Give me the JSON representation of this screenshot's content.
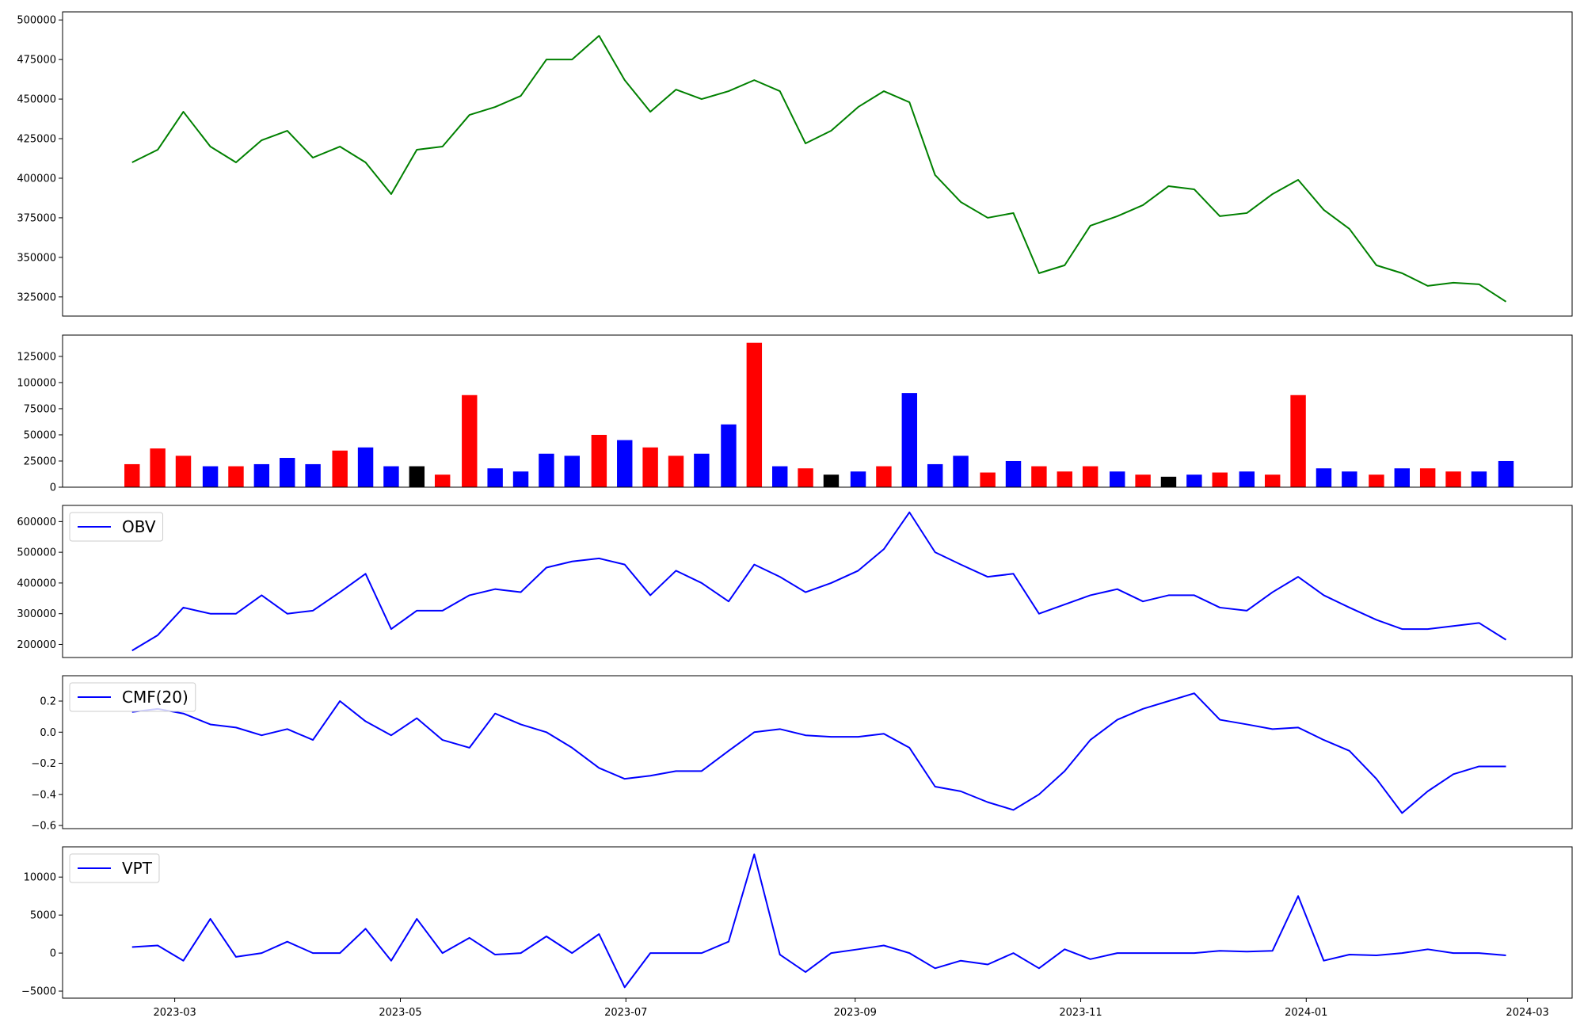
{
  "chart_data": [
    {
      "type": "line",
      "xlim": [
        2023.0785,
        2024.197
      ],
      "ylim": [
        312900,
        505100
      ],
      "yticks": [
        325000,
        350000,
        375000,
        400000,
        425000,
        450000,
        475000,
        500000
      ],
      "x": [
        2023.13,
        2023.149,
        2023.168,
        2023.188,
        2023.207,
        2023.226,
        2023.245,
        2023.264,
        2023.284,
        2023.303,
        2023.322,
        2023.341,
        2023.36,
        2023.38,
        2023.399,
        2023.418,
        2023.437,
        2023.456,
        2023.476,
        2023.495,
        2023.514,
        2023.533,
        2023.552,
        2023.572,
        2023.591,
        2023.61,
        2023.629,
        2023.648,
        2023.668,
        2023.687,
        2023.706,
        2023.725,
        2023.744,
        2023.764,
        2023.783,
        2023.802,
        2023.821,
        2023.84,
        2023.86,
        2023.879,
        2023.898,
        2023.917,
        2023.936,
        2023.956,
        2023.975,
        2023.994,
        2024.013,
        2024.032,
        2024.052,
        2024.071,
        2024.09,
        2024.109,
        2024.128,
        2024.148
      ],
      "series": [
        {
          "color": "green",
          "values": [
            410000,
            418000,
            442000,
            420000,
            410000,
            424000,
            430000,
            413000,
            420000,
            410000,
            390000,
            418000,
            420000,
            440000,
            445000,
            452000,
            475000,
            475000,
            490000,
            462000,
            442000,
            456000,
            450000,
            455000,
            462000,
            455000,
            422000,
            430000,
            445000,
            455000,
            448000,
            402000,
            385000,
            375000,
            378000,
            340000,
            345000,
            370000,
            376000,
            383000,
            395000,
            393000,
            376000,
            378000,
            390000,
            399000,
            380000,
            368000,
            345000,
            340000,
            332000,
            334000,
            333000,
            322000
          ]
        }
      ]
    },
    {
      "type": "bar",
      "xlim": [
        2023.0785,
        2024.197
      ],
      "ylim": [
        0,
        145350
      ],
      "yticks": [
        0,
        25000,
        50000,
        75000,
        100000,
        125000
      ],
      "x": [
        2023.13,
        2023.149,
        2023.168,
        2023.188,
        2023.207,
        2023.226,
        2023.245,
        2023.264,
        2023.284,
        2023.303,
        2023.322,
        2023.341,
        2023.36,
        2023.38,
        2023.399,
        2023.418,
        2023.437,
        2023.456,
        2023.476,
        2023.495,
        2023.514,
        2023.533,
        2023.552,
        2023.572,
        2023.591,
        2023.61,
        2023.629,
        2023.648,
        2023.668,
        2023.687,
        2023.706,
        2023.725,
        2023.744,
        2023.764,
        2023.783,
        2023.802,
        2023.821,
        2023.84,
        2023.86,
        2023.879,
        2023.898,
        2023.917,
        2023.936,
        2023.956,
        2023.975,
        2023.994,
        2024.013,
        2024.032,
        2024.052,
        2024.071,
        2024.09,
        2024.109,
        2024.128,
        2024.148
      ],
      "values": [
        22000,
        37000,
        30000,
        20000,
        20000,
        22000,
        28000,
        22000,
        35000,
        38000,
        20000,
        20000,
        12000,
        88000,
        18000,
        15000,
        32000,
        30000,
        50000,
        45000,
        38000,
        30000,
        32000,
        60000,
        138000,
        20000,
        18000,
        12000,
        15000,
        20000,
        90000,
        22000,
        30000,
        14000,
        25000,
        20000,
        15000,
        20000,
        15000,
        12000,
        10000,
        12000,
        14000,
        15000,
        12000,
        88000,
        18000,
        15000,
        12000,
        18000,
        18000,
        15000,
        15000,
        25000
      ],
      "colors": [
        "red",
        "red",
        "red",
        "blue",
        "red",
        "blue",
        "blue",
        "blue",
        "red",
        "blue",
        "blue",
        "black",
        "red",
        "red",
        "blue",
        "blue",
        "blue",
        "blue",
        "red",
        "blue",
        "red",
        "red",
        "blue",
        "blue",
        "red",
        "blue",
        "red",
        "black",
        "blue",
        "red",
        "blue",
        "blue",
        "blue",
        "red",
        "blue",
        "red",
        "red",
        "red",
        "blue",
        "red",
        "black",
        "blue",
        "red",
        "blue",
        "red",
        "red",
        "blue",
        "blue",
        "red",
        "blue",
        "red",
        "red",
        "blue",
        "blue"
      ]
    },
    {
      "type": "line",
      "xlim": [
        2023.0785,
        2024.197
      ],
      "ylim": [
        157400,
        652500
      ],
      "yticks": [
        200000,
        300000,
        400000,
        500000,
        600000
      ],
      "legend": "upper left",
      "x": [
        2023.13,
        2023.149,
        2023.168,
        2023.188,
        2023.207,
        2023.226,
        2023.245,
        2023.264,
        2023.284,
        2023.303,
        2023.322,
        2023.341,
        2023.36,
        2023.38,
        2023.399,
        2023.418,
        2023.437,
        2023.456,
        2023.476,
        2023.495,
        2023.514,
        2023.533,
        2023.552,
        2023.572,
        2023.591,
        2023.61,
        2023.629,
        2023.648,
        2023.668,
        2023.687,
        2023.706,
        2023.725,
        2023.744,
        2023.764,
        2023.783,
        2023.802,
        2023.821,
        2023.84,
        2023.86,
        2023.879,
        2023.898,
        2023.917,
        2023.936,
        2023.956,
        2023.975,
        2023.994,
        2024.013,
        2024.032,
        2024.052,
        2024.071,
        2024.09,
        2024.109,
        2024.128,
        2024.148
      ],
      "series": [
        {
          "name": "OBV",
          "color": "blue",
          "values": [
            180000,
            230000,
            320000,
            300000,
            300000,
            360000,
            300000,
            310000,
            370000,
            430000,
            250000,
            310000,
            310000,
            360000,
            380000,
            370000,
            450000,
            470000,
            480000,
            460000,
            360000,
            440000,
            400000,
            340000,
            460000,
            420000,
            370000,
            400000,
            440000,
            510000,
            630000,
            500000,
            460000,
            420000,
            430000,
            300000,
            330000,
            360000,
            380000,
            340000,
            360000,
            360000,
            320000,
            310000,
            370000,
            420000,
            360000,
            320000,
            280000,
            250000,
            250000,
            260000,
            270000,
            215000
          ]
        }
      ]
    },
    {
      "type": "line",
      "xlim": [
        2023.0785,
        2024.197
      ],
      "ylim": [
        -0.62,
        0.363
      ],
      "yticks": [
        {
          "value": -0.6,
          "label": "−0.6"
        },
        {
          "value": -0.4,
          "label": "−0.4"
        },
        {
          "value": -0.2,
          "label": "−0.2"
        },
        {
          "value": 0,
          "label": "0.0"
        },
        0.2
      ],
      "legend": "upper left",
      "x": [
        2023.13,
        2023.149,
        2023.168,
        2023.188,
        2023.207,
        2023.226,
        2023.245,
        2023.264,
        2023.284,
        2023.303,
        2023.322,
        2023.341,
        2023.36,
        2023.38,
        2023.399,
        2023.418,
        2023.437,
        2023.456,
        2023.476,
        2023.495,
        2023.514,
        2023.533,
        2023.552,
        2023.572,
        2023.591,
        2023.61,
        2023.629,
        2023.648,
        2023.668,
        2023.687,
        2023.706,
        2023.725,
        2023.744,
        2023.764,
        2023.783,
        2023.802,
        2023.821,
        2023.84,
        2023.86,
        2023.879,
        2023.898,
        2023.917,
        2023.936,
        2023.956,
        2023.975,
        2023.994,
        2024.013,
        2024.032,
        2024.052,
        2024.071,
        2024.09,
        2024.109,
        2024.128,
        2024.148
      ],
      "series": [
        {
          "name": "CMF(20)",
          "color": "blue",
          "values": [
            0.13,
            0.15,
            0.12,
            0.05,
            0.03,
            -0.02,
            0.02,
            -0.05,
            0.2,
            0.07,
            -0.02,
            0.09,
            -0.05,
            -0.1,
            0.12,
            0.05,
            0,
            -0.1,
            -0.23,
            -0.3,
            -0.28,
            -0.25,
            -0.25,
            -0.12,
            0,
            0.02,
            -0.02,
            -0.03,
            -0.03,
            -0.01,
            -0.1,
            -0.35,
            -0.38,
            -0.45,
            -0.5,
            -0.4,
            -0.25,
            -0.05,
            0.08,
            0.15,
            0.2,
            0.25,
            0.08,
            0.05,
            0.02,
            0.03,
            -0.05,
            -0.12,
            -0.3,
            -0.52,
            -0.38,
            -0.27,
            -0.22,
            -0.22
          ]
        }
      ]
    },
    {
      "type": "line",
      "xlim": [
        2023.0785,
        2024.197
      ],
      "ylim": [
        -5930,
        13980
      ],
      "yticks": [
        {
          "value": -5000,
          "label": "−5000"
        },
        0,
        5000,
        10000
      ],
      "legend": "upper left",
      "xticks": [
        {
          "value": 2023.1616,
          "label": "2023-03"
        },
        {
          "value": 2023.3288,
          "label": "2023-05"
        },
        {
          "value": 2023.4959,
          "label": "2023-07"
        },
        {
          "value": 2023.6658,
          "label": "2023-09"
        },
        {
          "value": 2023.8329,
          "label": "2023-11"
        },
        {
          "value": 2024.0,
          "label": "2024-01"
        },
        {
          "value": 2024.1639,
          "label": "2024-03"
        }
      ],
      "x": [
        2023.13,
        2023.149,
        2023.168,
        2023.188,
        2023.207,
        2023.226,
        2023.245,
        2023.264,
        2023.284,
        2023.303,
        2023.322,
        2023.341,
        2023.36,
        2023.38,
        2023.399,
        2023.418,
        2023.437,
        2023.456,
        2023.476,
        2023.495,
        2023.514,
        2023.533,
        2023.552,
        2023.572,
        2023.591,
        2023.61,
        2023.629,
        2023.648,
        2023.668,
        2023.687,
        2023.706,
        2023.725,
        2023.744,
        2023.764,
        2023.783,
        2023.802,
        2023.821,
        2023.84,
        2023.86,
        2023.879,
        2023.898,
        2023.917,
        2023.936,
        2023.956,
        2023.975,
        2023.994,
        2024.013,
        2024.032,
        2024.052,
        2024.071,
        2024.09,
        2024.109,
        2024.128,
        2024.148
      ],
      "series": [
        {
          "name": "VPT",
          "color": "blue",
          "values": [
            800,
            1000,
            -1000,
            4500,
            -500,
            0,
            1500,
            0,
            0,
            3200,
            -1000,
            4500,
            0,
            2000,
            -200,
            0,
            2200,
            0,
            2500,
            -4500,
            0,
            0,
            0,
            1500,
            13000,
            -200,
            -2500,
            0,
            500,
            1000,
            0,
            -2000,
            -1000,
            -1500,
            0,
            -2000,
            500,
            -800,
            0,
            0,
            0,
            0,
            300,
            200,
            300,
            7500,
            -1000,
            -200,
            -300,
            0,
            500,
            0,
            0,
            -300
          ]
        }
      ]
    }
  ]
}
